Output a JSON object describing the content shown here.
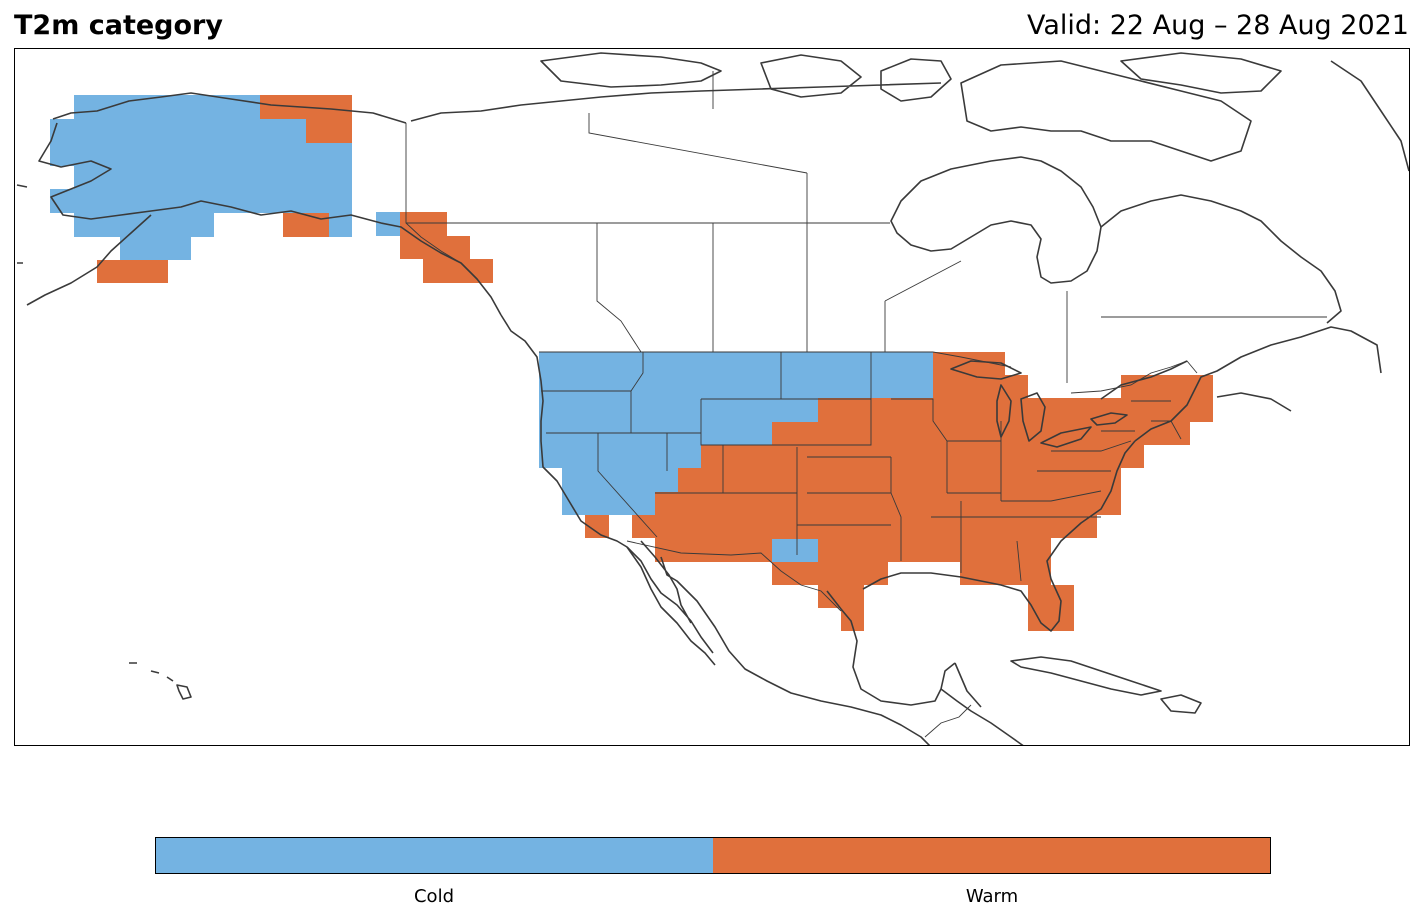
{
  "header": {
    "title": "T2m category",
    "valid": "Valid: 22 Aug – 28 Aug 2021"
  },
  "map": {
    "region": "North America",
    "categories": [
      "Cold",
      "Warm"
    ],
    "colors": {
      "cold": "#74b3e2",
      "warm": "#e0703c",
      "coastline": "#3a3a3a",
      "border": "#3a3a3a"
    }
  },
  "legend": {
    "items": [
      {
        "label": "Cold",
        "color": "#74b3e2"
      },
      {
        "label": "Warm",
        "color": "#e0703c"
      }
    ]
  }
}
